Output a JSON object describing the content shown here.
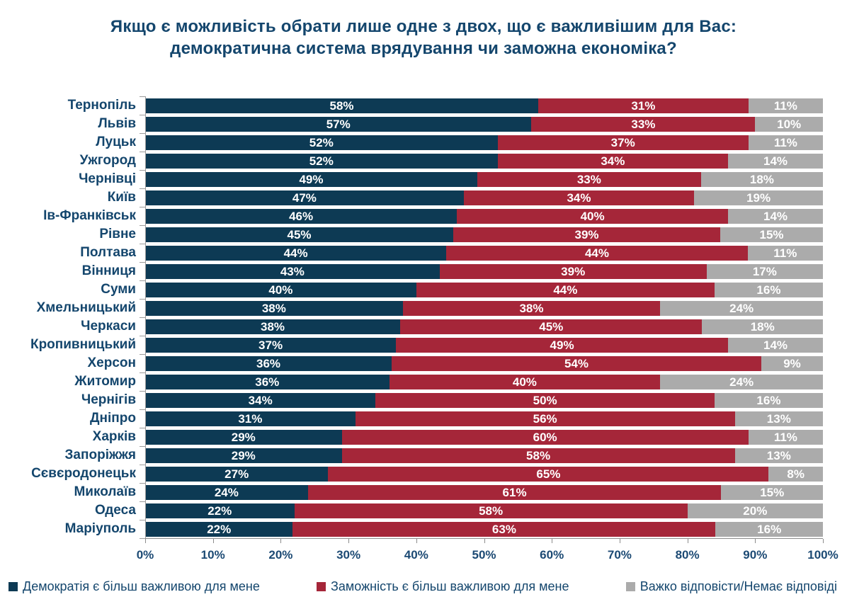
{
  "title_lines": [
    "Якщо є можливість обрати лише одне з двох, що є важливішим для Вас:",
    "демократична система врядування чи заможна економіка?"
  ],
  "colors": {
    "democracy": "#0d3a54",
    "wealth": "#a52639",
    "no_answer": "#ababab",
    "text_navy": "#14466d",
    "axis_gray": "#9b9b9b"
  },
  "chart_data": {
    "type": "bar",
    "orientation": "horizontal_stacked",
    "title": "Якщо є можливість обрати лише одне з двох, що є важливішим для Вас: демократична система врядування чи заможна економіка?",
    "categories": [
      "Тернопіль",
      "Львів",
      "Луцьк",
      "Ужгород",
      "Чернівці",
      "Київ",
      "Ів-Франківськ",
      "Рівне",
      "Полтава",
      "Вінниця",
      "Суми",
      "Хмельницький",
      "Черкаси",
      "Кропивницький",
      "Херсон",
      "Житомир",
      "Чернігів",
      "Дніпро",
      "Харків",
      "Запоріжжя",
      "Сєвєродонецьк",
      "Миколаїв",
      "Одеса",
      "Маріуполь"
    ],
    "series": [
      {
        "name": "Демократія є більш важливою для мене",
        "color": "#0d3a54",
        "values": [
          58,
          57,
          52,
          52,
          49,
          47,
          46,
          45,
          44,
          43,
          40,
          38,
          38,
          37,
          36,
          36,
          34,
          31,
          29,
          29,
          27,
          24,
          22,
          22
        ]
      },
      {
        "name": "Заможність є більш важливою для мене",
        "color": "#a52639",
        "values": [
          31,
          33,
          37,
          34,
          33,
          34,
          40,
          39,
          44,
          39,
          44,
          38,
          45,
          49,
          54,
          40,
          50,
          56,
          60,
          58,
          65,
          61,
          58,
          63
        ]
      },
      {
        "name": "Важко відповісти/Немає відповіді",
        "color": "#ababab",
        "values": [
          11,
          10,
          11,
          14,
          18,
          19,
          14,
          15,
          11,
          17,
          16,
          24,
          18,
          14,
          9,
          24,
          16,
          13,
          11,
          13,
          8,
          15,
          20,
          16
        ]
      }
    ],
    "x_ticks": [
      "0%",
      "10%",
      "20%",
      "30%",
      "40%",
      "50%",
      "60%",
      "70%",
      "80%",
      "90%",
      "100%"
    ],
    "xlim": [
      0,
      100
    ],
    "value_suffix": "%",
    "legend_position": "bottom",
    "grid": false
  }
}
